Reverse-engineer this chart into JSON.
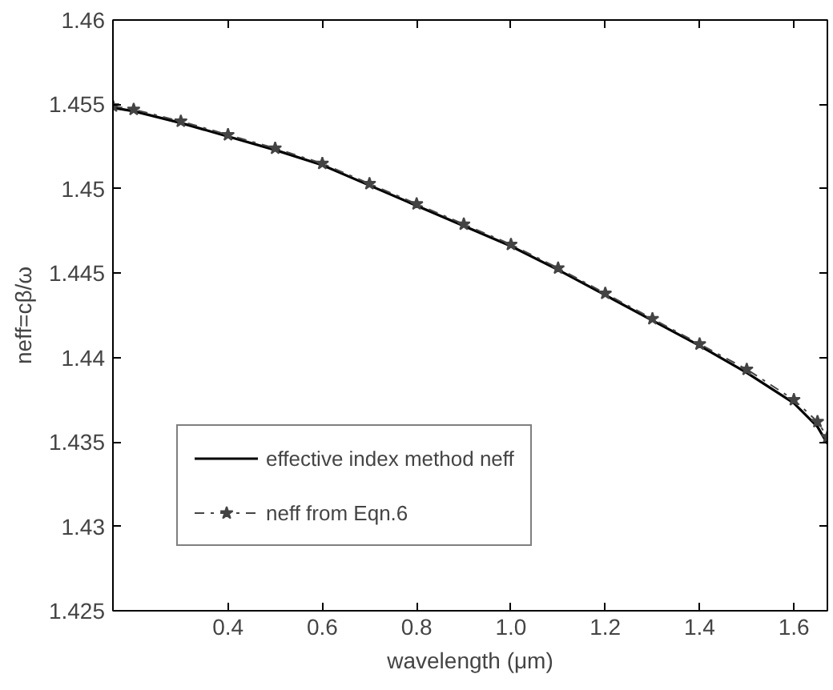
{
  "chart_data": {
    "type": "line",
    "xlabel": "wavelength (μm)",
    "ylabel": "neff=cβ/ω",
    "x": [
      0.156,
      0.2,
      0.3,
      0.4,
      0.5,
      0.6,
      0.7,
      0.8,
      0.9,
      1.0,
      1.1,
      1.2,
      1.3,
      1.4,
      1.5,
      1.6,
      1.65,
      1.671
    ],
    "series": [
      {
        "name": "effective index method neff",
        "color": "#000000",
        "line_style": "solid",
        "marker": "none",
        "values": [
          1.4548,
          1.4546,
          1.4539,
          1.4531,
          1.4523,
          1.4514,
          1.4502,
          1.449,
          1.4478,
          1.4466,
          1.4452,
          1.4437,
          1.4422,
          1.4407,
          1.4391,
          1.4373,
          1.4359,
          1.4349
        ]
      },
      {
        "name": "neff from Eqn.6",
        "color": "#444444",
        "line_style": "dashed",
        "marker": "star",
        "values": [
          1.4549,
          1.4547,
          1.454,
          1.4532,
          1.4524,
          1.4515,
          1.4503,
          1.4491,
          1.4479,
          1.4467,
          1.4453,
          1.4438,
          1.4423,
          1.4408,
          1.4393,
          1.4375,
          1.4362,
          1.4353
        ]
      }
    ],
    "xlim": [
      0.156,
      1.671
    ],
    "xticks": [
      0.4,
      0.6,
      0.8,
      {
        "value": 1.0,
        "label": "1.0"
      },
      1.2,
      1.4,
      1.6
    ],
    "ylim": [
      1.425,
      1.46
    ],
    "yticks": [
      1.425,
      1.43,
      1.435,
      1.44,
      1.445,
      1.45,
      1.455,
      1.46
    ],
    "grid": false,
    "legend": "bottom left"
  }
}
